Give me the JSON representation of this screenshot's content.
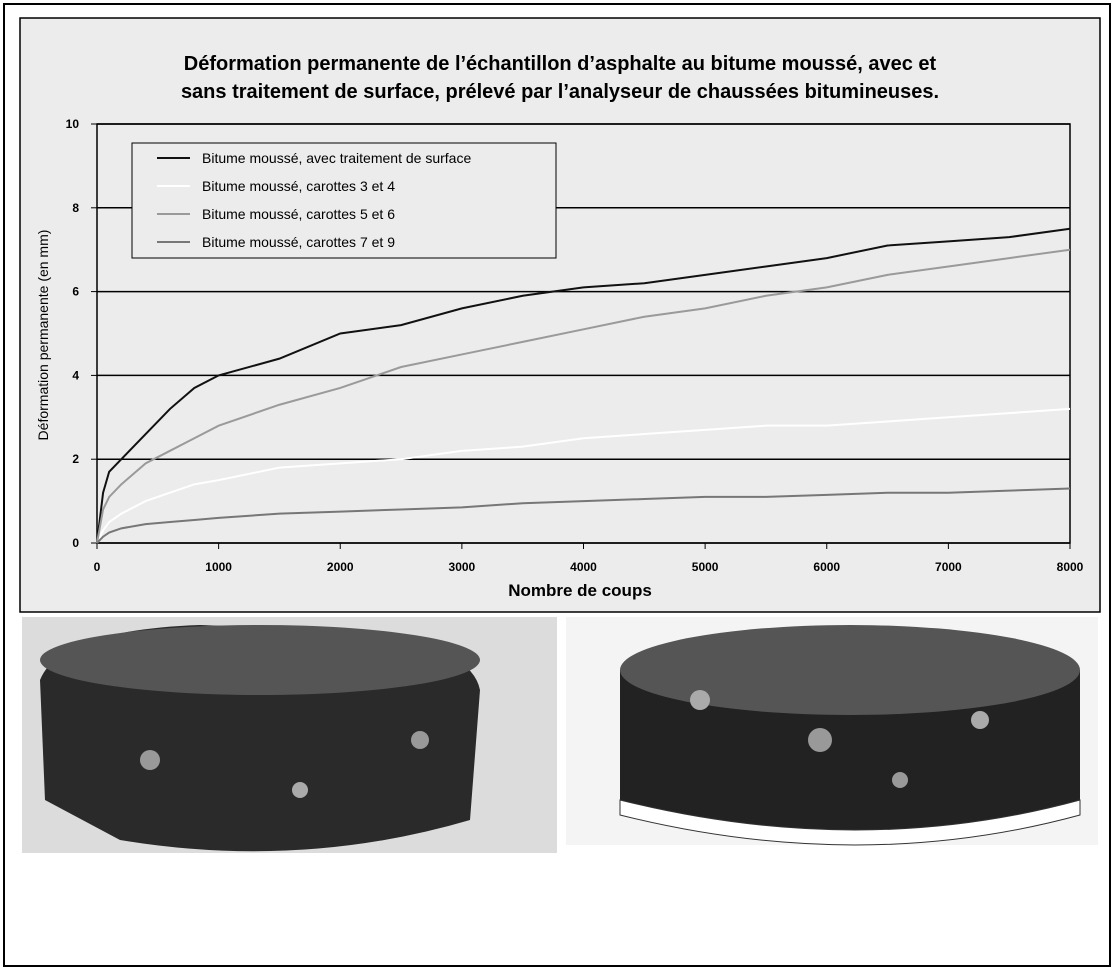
{
  "chart_data": {
    "type": "line",
    "title": [
      "Déformation permanente de l’échantillon d’asphalte au bitume moussé, avec et",
      "sans traitement de surface, prélevé par l’analyseur de chaussées bitumineuses."
    ],
    "x_label": "Nombre de coups",
    "y_label": "Déformation permanente (en mm)",
    "x": [
      0,
      50,
      100,
      200,
      400,
      600,
      800,
      1000,
      1500,
      2000,
      2500,
      3000,
      3500,
      4000,
      4500,
      5000,
      5500,
      6000,
      6500,
      7000,
      7500,
      8000
    ],
    "series": [
      {
        "name": "Bitume moussé, avec traitement de surface",
        "color": "#111111",
        "values": [
          0,
          1.2,
          1.7,
          2.0,
          2.6,
          3.2,
          3.7,
          4.0,
          4.4,
          5.0,
          5.2,
          5.6,
          5.9,
          6.1,
          6.2,
          6.4,
          6.6,
          6.8,
          7.1,
          7.2,
          7.3,
          7.5
        ]
      },
      {
        "name": "Bitume moussé, carottes 3 et 4",
        "color": "#ffffff",
        "values": [
          0,
          0.3,
          0.5,
          0.7,
          1.0,
          1.2,
          1.4,
          1.5,
          1.8,
          1.9,
          2.0,
          2.2,
          2.3,
          2.5,
          2.6,
          2.7,
          2.8,
          2.8,
          2.9,
          3.0,
          3.1,
          3.2
        ]
      },
      {
        "name": "Bitume moussé, carottes 5 et 6",
        "color": "#9a9a9a",
        "values": [
          0,
          0.8,
          1.1,
          1.4,
          1.9,
          2.2,
          2.5,
          2.8,
          3.3,
          3.7,
          4.2,
          4.5,
          4.8,
          5.1,
          5.4,
          5.6,
          5.9,
          6.1,
          6.4,
          6.6,
          6.8,
          7.0
        ]
      },
      {
        "name": "Bitume moussé, carottes 7 et 9",
        "color": "#777777",
        "values": [
          0,
          0.15,
          0.25,
          0.35,
          0.45,
          0.5,
          0.55,
          0.6,
          0.7,
          0.75,
          0.8,
          0.85,
          0.95,
          1.0,
          1.05,
          1.1,
          1.1,
          1.15,
          1.2,
          1.2,
          1.25,
          1.3
        ]
      }
    ],
    "xlim": [
      0,
      8000
    ],
    "xticks": [
      0,
      1000,
      2000,
      3000,
      4000,
      5000,
      6000,
      7000,
      8000
    ],
    "ylim": [
      0,
      10
    ],
    "yticks": [
      0,
      2,
      4,
      6,
      8,
      10
    ],
    "grid": true,
    "legend": "top-left"
  }
}
